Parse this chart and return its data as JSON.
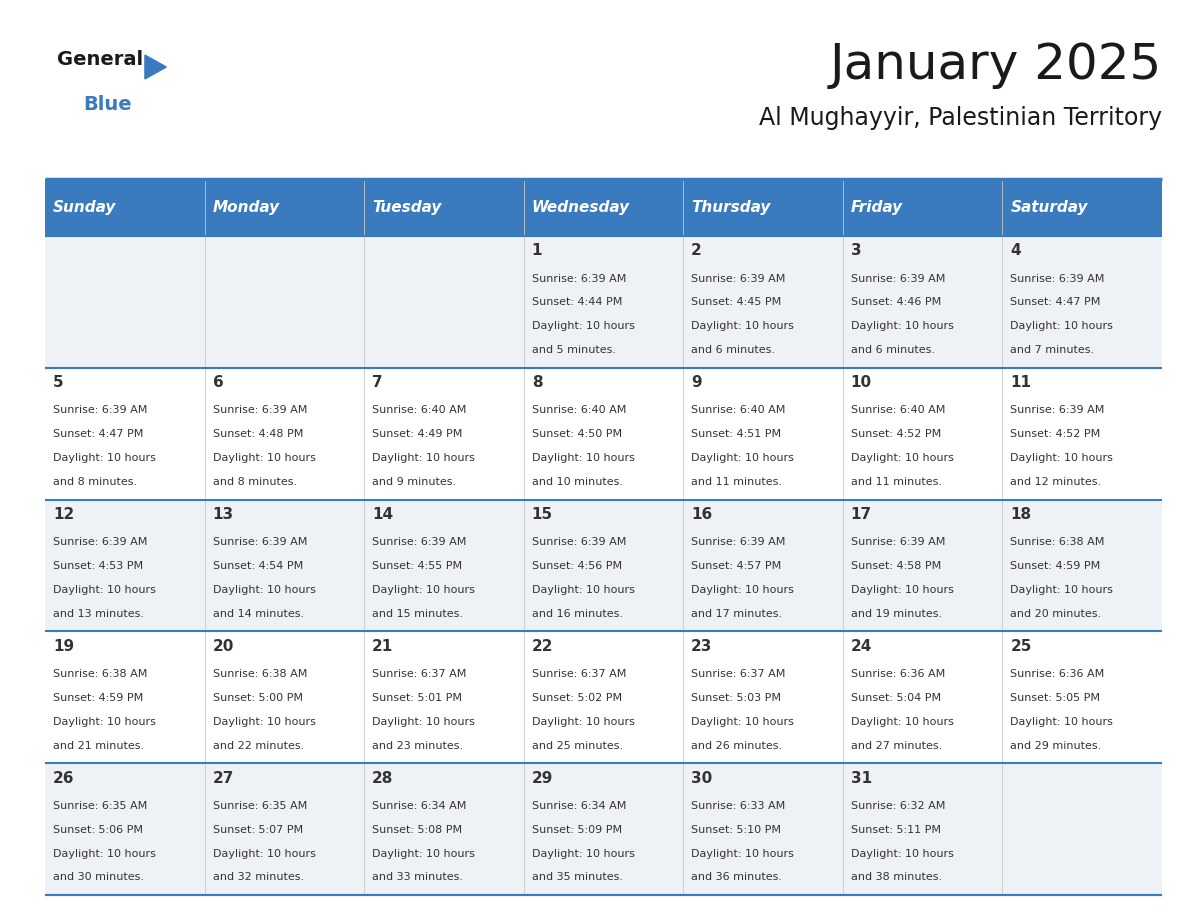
{
  "title": "January 2025",
  "subtitle": "Al Mughayyir, Palestinian Territory",
  "header_bg_color": "#3a7abf",
  "header_text_color": "#ffffff",
  "cell_bg_alt": "#eef2f7",
  "cell_bg_white": "#ffffff",
  "border_color": "#3a7abf",
  "title_color": "#1a1a1a",
  "subtitle_color": "#1a1a1a",
  "text_color": "#333333",
  "day_names": [
    "Sunday",
    "Monday",
    "Tuesday",
    "Wednesday",
    "Thursday",
    "Friday",
    "Saturday"
  ],
  "days": [
    {
      "day": 1,
      "col": 3,
      "row": 0,
      "sunrise": "6:39 AM",
      "sunset": "4:44 PM",
      "daylight": "10 hours and 5 minutes."
    },
    {
      "day": 2,
      "col": 4,
      "row": 0,
      "sunrise": "6:39 AM",
      "sunset": "4:45 PM",
      "daylight": "10 hours and 6 minutes."
    },
    {
      "day": 3,
      "col": 5,
      "row": 0,
      "sunrise": "6:39 AM",
      "sunset": "4:46 PM",
      "daylight": "10 hours and 6 minutes."
    },
    {
      "day": 4,
      "col": 6,
      "row": 0,
      "sunrise": "6:39 AM",
      "sunset": "4:47 PM",
      "daylight": "10 hours and 7 minutes."
    },
    {
      "day": 5,
      "col": 0,
      "row": 1,
      "sunrise": "6:39 AM",
      "sunset": "4:47 PM",
      "daylight": "10 hours and 8 minutes."
    },
    {
      "day": 6,
      "col": 1,
      "row": 1,
      "sunrise": "6:39 AM",
      "sunset": "4:48 PM",
      "daylight": "10 hours and 8 minutes."
    },
    {
      "day": 7,
      "col": 2,
      "row": 1,
      "sunrise": "6:40 AM",
      "sunset": "4:49 PM",
      "daylight": "10 hours and 9 minutes."
    },
    {
      "day": 8,
      "col": 3,
      "row": 1,
      "sunrise": "6:40 AM",
      "sunset": "4:50 PM",
      "daylight": "10 hours and 10 minutes."
    },
    {
      "day": 9,
      "col": 4,
      "row": 1,
      "sunrise": "6:40 AM",
      "sunset": "4:51 PM",
      "daylight": "10 hours and 11 minutes."
    },
    {
      "day": 10,
      "col": 5,
      "row": 1,
      "sunrise": "6:40 AM",
      "sunset": "4:52 PM",
      "daylight": "10 hours and 11 minutes."
    },
    {
      "day": 11,
      "col": 6,
      "row": 1,
      "sunrise": "6:39 AM",
      "sunset": "4:52 PM",
      "daylight": "10 hours and 12 minutes."
    },
    {
      "day": 12,
      "col": 0,
      "row": 2,
      "sunrise": "6:39 AM",
      "sunset": "4:53 PM",
      "daylight": "10 hours and 13 minutes."
    },
    {
      "day": 13,
      "col": 1,
      "row": 2,
      "sunrise": "6:39 AM",
      "sunset": "4:54 PM",
      "daylight": "10 hours and 14 minutes."
    },
    {
      "day": 14,
      "col": 2,
      "row": 2,
      "sunrise": "6:39 AM",
      "sunset": "4:55 PM",
      "daylight": "10 hours and 15 minutes."
    },
    {
      "day": 15,
      "col": 3,
      "row": 2,
      "sunrise": "6:39 AM",
      "sunset": "4:56 PM",
      "daylight": "10 hours and 16 minutes."
    },
    {
      "day": 16,
      "col": 4,
      "row": 2,
      "sunrise": "6:39 AM",
      "sunset": "4:57 PM",
      "daylight": "10 hours and 17 minutes."
    },
    {
      "day": 17,
      "col": 5,
      "row": 2,
      "sunrise": "6:39 AM",
      "sunset": "4:58 PM",
      "daylight": "10 hours and 19 minutes."
    },
    {
      "day": 18,
      "col": 6,
      "row": 2,
      "sunrise": "6:38 AM",
      "sunset": "4:59 PM",
      "daylight": "10 hours and 20 minutes."
    },
    {
      "day": 19,
      "col": 0,
      "row": 3,
      "sunrise": "6:38 AM",
      "sunset": "4:59 PM",
      "daylight": "10 hours and 21 minutes."
    },
    {
      "day": 20,
      "col": 1,
      "row": 3,
      "sunrise": "6:38 AM",
      "sunset": "5:00 PM",
      "daylight": "10 hours and 22 minutes."
    },
    {
      "day": 21,
      "col": 2,
      "row": 3,
      "sunrise": "6:37 AM",
      "sunset": "5:01 PM",
      "daylight": "10 hours and 23 minutes."
    },
    {
      "day": 22,
      "col": 3,
      "row": 3,
      "sunrise": "6:37 AM",
      "sunset": "5:02 PM",
      "daylight": "10 hours and 25 minutes."
    },
    {
      "day": 23,
      "col": 4,
      "row": 3,
      "sunrise": "6:37 AM",
      "sunset": "5:03 PM",
      "daylight": "10 hours and 26 minutes."
    },
    {
      "day": 24,
      "col": 5,
      "row": 3,
      "sunrise": "6:36 AM",
      "sunset": "5:04 PM",
      "daylight": "10 hours and 27 minutes."
    },
    {
      "day": 25,
      "col": 6,
      "row": 3,
      "sunrise": "6:36 AM",
      "sunset": "5:05 PM",
      "daylight": "10 hours and 29 minutes."
    },
    {
      "day": 26,
      "col": 0,
      "row": 4,
      "sunrise": "6:35 AM",
      "sunset": "5:06 PM",
      "daylight": "10 hours and 30 minutes."
    },
    {
      "day": 27,
      "col": 1,
      "row": 4,
      "sunrise": "6:35 AM",
      "sunset": "5:07 PM",
      "daylight": "10 hours and 32 minutes."
    },
    {
      "day": 28,
      "col": 2,
      "row": 4,
      "sunrise": "6:34 AM",
      "sunset": "5:08 PM",
      "daylight": "10 hours and 33 minutes."
    },
    {
      "day": 29,
      "col": 3,
      "row": 4,
      "sunrise": "6:34 AM",
      "sunset": "5:09 PM",
      "daylight": "10 hours and 35 minutes."
    },
    {
      "day": 30,
      "col": 4,
      "row": 4,
      "sunrise": "6:33 AM",
      "sunset": "5:10 PM",
      "daylight": "10 hours and 36 minutes."
    },
    {
      "day": 31,
      "col": 5,
      "row": 4,
      "sunrise": "6:32 AM",
      "sunset": "5:11 PM",
      "daylight": "10 hours and 38 minutes."
    }
  ]
}
